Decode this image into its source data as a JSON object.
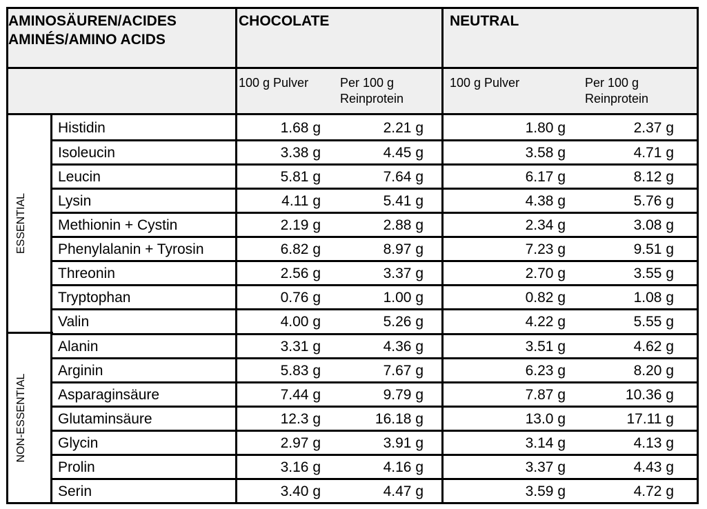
{
  "header": {
    "amino_title_line1": "AMINOSÄUREN/ACIDES",
    "amino_title_line2": "AMINÉS/AMINO ACIDS",
    "chocolate": "CHOCOLATE",
    "neutral": "NEUTRAL",
    "sub_pulver": "100 g Pulver",
    "sub_rein_line1": "Per 100 g",
    "sub_rein_line2": "Reinprotein"
  },
  "groups": [
    {
      "label": "ESSENTIAL"
    },
    {
      "label": "NON-ESSENTIAL"
    }
  ],
  "rows": [
    {
      "name": "Histidin",
      "choc_pulver": "1.68 g",
      "choc_rein": "2.21 g",
      "neut_pulver": "1.80 g",
      "neut_rein": "2.37 g"
    },
    {
      "name": "Isoleucin",
      "choc_pulver": "3.38 g",
      "choc_rein": "4.45 g",
      "neut_pulver": "3.58 g",
      "neut_rein": "4.71 g"
    },
    {
      "name": "Leucin",
      "choc_pulver": "5.81 g",
      "choc_rein": "7.64 g",
      "neut_pulver": "6.17 g",
      "neut_rein": "8.12 g"
    },
    {
      "name": "Lysin",
      "choc_pulver": "4.11 g",
      "choc_rein": "5.41 g",
      "neut_pulver": "4.38 g",
      "neut_rein": "5.76 g"
    },
    {
      "name": "Methionin + Cystin",
      "choc_pulver": "2.19 g",
      "choc_rein": "2.88 g",
      "neut_pulver": "2.34 g",
      "neut_rein": "3.08 g"
    },
    {
      "name": "Phenylalanin + Tyrosin",
      "choc_pulver": "6.82 g",
      "choc_rein": "8.97 g",
      "neut_pulver": "7.23 g",
      "neut_rein": "9.51 g"
    },
    {
      "name": "Threonin",
      "choc_pulver": "2.56 g",
      "choc_rein": "3.37 g",
      "neut_pulver": "2.70 g",
      "neut_rein": "3.55 g"
    },
    {
      "name": "Tryptophan",
      "choc_pulver": "0.76 g",
      "choc_rein": "1.00 g",
      "neut_pulver": "0.82 g",
      "neut_rein": "1.08 g"
    },
    {
      "name": "Valin",
      "choc_pulver": "4.00 g",
      "choc_rein": "5.26 g",
      "neut_pulver": "4.22 g",
      "neut_rein": "5.55 g"
    },
    {
      "name": "Alanin",
      "choc_pulver": "3.31 g",
      "choc_rein": "4.36 g",
      "neut_pulver": "3.51 g",
      "neut_rein": "4.62 g"
    },
    {
      "name": "Arginin",
      "choc_pulver": "5.83 g",
      "choc_rein": "7.67 g",
      "neut_pulver": "6.23 g",
      "neut_rein": "8.20 g"
    },
    {
      "name": "Asparaginsäure",
      "choc_pulver": "7.44 g",
      "choc_rein": "9.79 g",
      "neut_pulver": "7.87 g",
      "neut_rein": "10.36 g"
    },
    {
      "name": "Glutaminsäure",
      "choc_pulver": "12.3 g",
      "choc_rein": "16.18 g",
      "neut_pulver": "13.0 g",
      "neut_rein": "17.11 g"
    },
    {
      "name": "Glycin",
      "choc_pulver": "2.97 g",
      "choc_rein": "3.91 g",
      "neut_pulver": "3.14 g",
      "neut_rein": "4.13 g"
    },
    {
      "name": "Prolin",
      "choc_pulver": "3.16 g",
      "choc_rein": "4.16 g",
      "neut_pulver": "3.37 g",
      "neut_rein": "4.43 g"
    },
    {
      "name": "Serin",
      "choc_pulver": "3.40 g",
      "choc_rein": "4.47 g",
      "neut_pulver": "3.59 g",
      "neut_rein": "4.72 g"
    }
  ]
}
